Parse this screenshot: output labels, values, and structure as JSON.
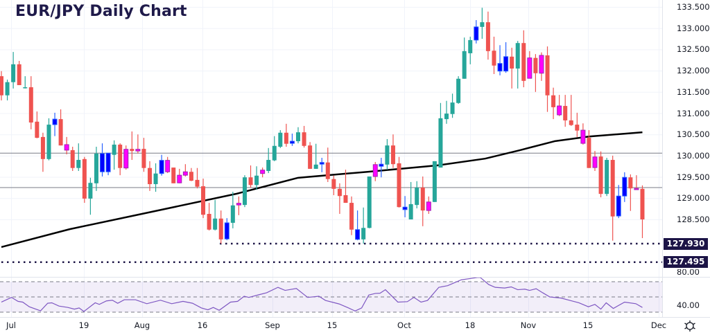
{
  "title": "EUR/JPY Daily Chart",
  "colors": {
    "up": "#26a69a",
    "down": "#ef5350",
    "blue": "#0000ff",
    "magenta": "#ff00ff",
    "ma": "#000000",
    "level": "#787b86",
    "badge": "#1c1446",
    "rsi": "#7e57c2"
  },
  "chart_data": {
    "type": "candlestick",
    "title": "EUR/JPY Daily Chart",
    "ylim": [
      127.35,
      133.65
    ],
    "price_ticks": [
      "133.500",
      "133.000",
      "132.500",
      "132.000",
      "131.500",
      "131.000",
      "130.500",
      "130.000",
      "129.500",
      "129.000",
      "128.500"
    ],
    "price_tick_values": [
      133.5,
      133.0,
      132.5,
      132.0,
      131.5,
      131.0,
      130.5,
      130.0,
      129.5,
      129.0,
      128.5
    ],
    "x_ticks": [
      "Jul",
      "19",
      "Aug",
      "16",
      "Sep",
      "15",
      "Oct",
      "18",
      "Nov",
      "15",
      "Dec"
    ],
    "candle_colors_legend": {
      "g": "bullish",
      "r": "bearish",
      "b": "bullish highlighted (blue)",
      "m": "bearish highlighted (magenta)"
    },
    "candles": [
      [
        131.87,
        131.99,
        131.3,
        131.42,
        "r"
      ],
      [
        131.42,
        131.79,
        131.3,
        131.73,
        "g"
      ],
      [
        131.73,
        132.44,
        131.58,
        132.15,
        "g"
      ],
      [
        132.15,
        132.23,
        131.66,
        131.66,
        "r"
      ],
      [
        131.6,
        131.87,
        131.58,
        131.61,
        "g"
      ],
      [
        131.61,
        131.87,
        130.62,
        130.78,
        "r"
      ],
      [
        130.8,
        131.04,
        130.41,
        130.42,
        "r"
      ],
      [
        130.44,
        130.54,
        129.62,
        129.92,
        "r"
      ],
      [
        129.92,
        130.88,
        129.89,
        130.73,
        "g"
      ],
      [
        130.73,
        131.01,
        130.46,
        130.86,
        "b"
      ],
      [
        130.86,
        131.09,
        130.24,
        130.24,
        "r"
      ],
      [
        130.26,
        130.44,
        130.03,
        130.13,
        "m"
      ],
      [
        130.13,
        130.21,
        129.64,
        129.71,
        "r"
      ],
      [
        129.71,
        130.29,
        129.64,
        129.9,
        "g"
      ],
      [
        129.92,
        129.97,
        128.89,
        128.99,
        "r"
      ],
      [
        128.99,
        129.48,
        128.61,
        129.36,
        "g"
      ],
      [
        129.35,
        130.21,
        129.17,
        130.05,
        "g"
      ],
      [
        129.62,
        130.29,
        129.51,
        130.05,
        "b"
      ],
      [
        129.62,
        130.06,
        129.54,
        130.06,
        "b"
      ],
      [
        130.02,
        130.36,
        129.67,
        130.26,
        "g"
      ],
      [
        130.26,
        130.29,
        129.54,
        129.71,
        "r"
      ],
      [
        130.15,
        130.24,
        129.67,
        129.71,
        "m"
      ],
      [
        130.16,
        130.57,
        129.9,
        130.11,
        "r"
      ],
      [
        130.15,
        130.5,
        130.05,
        130.11,
        "m"
      ],
      [
        130.16,
        130.42,
        129.62,
        129.71,
        "r"
      ],
      [
        129.71,
        129.87,
        129.17,
        129.33,
        "r"
      ],
      [
        129.33,
        129.82,
        129.15,
        129.58,
        "g"
      ],
      [
        129.58,
        130.02,
        129.53,
        129.89,
        "b"
      ],
      [
        129.89,
        129.97,
        129.59,
        129.62,
        "m"
      ],
      [
        129.72,
        129.72,
        129.35,
        129.35,
        "r"
      ],
      [
        129.54,
        129.69,
        129.35,
        129.36,
        "m"
      ],
      [
        129.62,
        129.8,
        129.51,
        129.54,
        "m"
      ],
      [
        129.62,
        129.71,
        129.4,
        129.41,
        "r"
      ],
      [
        129.43,
        129.71,
        129.23,
        129.27,
        "r"
      ],
      [
        129.28,
        129.46,
        128.53,
        128.61,
        "r"
      ],
      [
        128.63,
        128.89,
        128.24,
        128.26,
        "r"
      ],
      [
        128.26,
        128.96,
        128.24,
        128.52,
        "g"
      ],
      [
        128.52,
        128.71,
        127.93,
        128.03,
        "r"
      ],
      [
        128.04,
        128.53,
        128.01,
        128.42,
        "b"
      ],
      [
        128.42,
        129.15,
        128.29,
        128.83,
        "g"
      ],
      [
        128.88,
        129.04,
        128.6,
        128.84,
        "m"
      ],
      [
        128.84,
        129.54,
        128.79,
        129.49,
        "g"
      ],
      [
        129.49,
        129.77,
        129.25,
        129.31,
        "r"
      ],
      [
        129.31,
        129.75,
        129.2,
        129.53,
        "g"
      ],
      [
        129.66,
        129.72,
        129.49,
        129.58,
        "m"
      ],
      [
        129.64,
        130.18,
        129.59,
        129.9,
        "g"
      ],
      [
        129.89,
        130.46,
        129.87,
        130.23,
        "g"
      ],
      [
        130.21,
        130.6,
        130.18,
        130.54,
        "g"
      ],
      [
        130.54,
        130.75,
        130.21,
        130.28,
        "r"
      ],
      [
        130.29,
        130.52,
        130.23,
        130.34,
        "b"
      ],
      [
        130.34,
        130.67,
        130.29,
        130.55,
        "g"
      ],
      [
        130.55,
        130.7,
        130.19,
        130.23,
        "r"
      ],
      [
        130.24,
        130.32,
        129.69,
        129.69,
        "r"
      ],
      [
        129.69,
        130.28,
        129.69,
        129.79,
        "g"
      ],
      [
        129.8,
        129.95,
        129.61,
        129.84,
        "b"
      ],
      [
        129.84,
        130.19,
        129.38,
        129.45,
        "r"
      ],
      [
        129.45,
        129.53,
        129.07,
        129.22,
        "r"
      ],
      [
        129.22,
        129.35,
        128.63,
        129.05,
        "r"
      ],
      [
        129.07,
        129.67,
        128.89,
        128.89,
        "r"
      ],
      [
        128.89,
        129.04,
        128.13,
        128.26,
        "r"
      ],
      [
        128.03,
        128.71,
        128.01,
        128.26,
        "b"
      ],
      [
        128.03,
        128.78,
        127.93,
        128.3,
        "g"
      ],
      [
        128.3,
        129.51,
        128.29,
        129.51,
        "g"
      ],
      [
        129.79,
        129.85,
        129.4,
        129.51,
        "m"
      ],
      [
        129.75,
        129.95,
        129.49,
        129.8,
        "b"
      ],
      [
        129.79,
        130.39,
        129.67,
        130.24,
        "g"
      ],
      [
        130.24,
        130.5,
        129.71,
        129.8,
        "r"
      ],
      [
        129.82,
        129.97,
        128.78,
        128.79,
        "r"
      ],
      [
        128.73,
        129.05,
        128.55,
        128.79,
        "b"
      ],
      [
        128.5,
        129.38,
        128.5,
        128.86,
        "g"
      ],
      [
        128.84,
        129.4,
        128.76,
        129.25,
        "g"
      ],
      [
        129.25,
        129.51,
        128.34,
        128.71,
        "r"
      ],
      [
        128.91,
        129.04,
        128.63,
        128.71,
        "m"
      ],
      [
        128.91,
        129.87,
        128.91,
        129.87,
        "g"
      ],
      [
        129.72,
        131.24,
        129.72,
        130.88,
        "g"
      ],
      [
        130.86,
        131.29,
        130.75,
        130.99,
        "g"
      ],
      [
        130.98,
        131.46,
        130.89,
        131.25,
        "g"
      ],
      [
        131.24,
        131.87,
        131.22,
        131.81,
        "g"
      ],
      [
        131.81,
        132.78,
        131.81,
        132.46,
        "g"
      ],
      [
        132.41,
        132.8,
        132.15,
        132.72,
        "g"
      ],
      [
        132.72,
        133.19,
        132.64,
        133.03,
        "b"
      ],
      [
        133.03,
        133.48,
        132.75,
        133.14,
        "g"
      ],
      [
        133.14,
        133.39,
        132.26,
        132.46,
        "r"
      ],
      [
        132.47,
        132.8,
        131.92,
        132.12,
        "r"
      ],
      [
        131.99,
        132.6,
        131.89,
        132.17,
        "b"
      ],
      [
        131.99,
        132.67,
        131.95,
        132.33,
        "b"
      ],
      [
        132.33,
        132.54,
        131.58,
        132.05,
        "r"
      ],
      [
        132.05,
        132.7,
        131.58,
        132.65,
        "g"
      ],
      [
        132.65,
        132.95,
        131.61,
        131.76,
        "r"
      ],
      [
        132.3,
        132.46,
        131.82,
        131.82,
        "m"
      ],
      [
        132.3,
        132.39,
        131.5,
        131.94,
        "r"
      ],
      [
        132.36,
        132.43,
        131.76,
        131.94,
        "m"
      ],
      [
        132.36,
        132.57,
        131.03,
        131.42,
        "r"
      ],
      [
        131.42,
        131.6,
        130.86,
        131.14,
        "r"
      ],
      [
        131.17,
        131.43,
        130.93,
        130.96,
        "m"
      ],
      [
        131.17,
        131.43,
        130.68,
        130.83,
        "r"
      ],
      [
        130.83,
        131.43,
        130.7,
        130.72,
        "r"
      ],
      [
        130.73,
        131.01,
        130.44,
        130.59,
        "r"
      ],
      [
        130.6,
        130.76,
        130.26,
        130.29,
        "m"
      ],
      [
        130.42,
        130.6,
        129.71,
        129.71,
        "r"
      ],
      [
        129.97,
        130.11,
        129.64,
        129.72,
        "m"
      ],
      [
        129.98,
        130.1,
        129.02,
        129.1,
        "r"
      ],
      [
        129.1,
        129.95,
        129.05,
        129.9,
        "g"
      ],
      [
        129.9,
        130.0,
        128.0,
        128.57,
        "r"
      ],
      [
        128.58,
        129.31,
        128.53,
        129.05,
        "b"
      ],
      [
        129.05,
        129.61,
        128.91,
        129.49,
        "b"
      ],
      [
        129.49,
        129.56,
        128.7,
        129.23,
        "r"
      ],
      [
        129.23,
        129.54,
        129.2,
        129.2,
        "m"
      ],
      [
        129.22,
        129.3,
        128.06,
        128.5,
        "r"
      ]
    ],
    "moving_average": [
      [
        0,
        127.85
      ],
      [
        11.5,
        128.27
      ],
      [
        23,
        128.61
      ],
      [
        39.5,
        129.1
      ],
      [
        50,
        129.48
      ],
      [
        61.7,
        129.62
      ],
      [
        73.4,
        129.77
      ],
      [
        81.5,
        129.93
      ],
      [
        87.4,
        130.13
      ],
      [
        93.2,
        130.34
      ],
      [
        99,
        130.45
      ],
      [
        108,
        130.55
      ]
    ],
    "horizontal_levels": [
      130.06,
      129.25
    ],
    "dotted_levels": [
      {
        "value": 127.93,
        "label": "127.930",
        "from_index": 36.8
      },
      {
        "value": 127.495,
        "label": "127.495",
        "from_index": 0
      }
    ],
    "rsi": {
      "ticks": [
        "80.00",
        "40.00"
      ],
      "tick_values": [
        80,
        40
      ],
      "bands": [
        70,
        50,
        30
      ],
      "ylim": [
        27,
        82
      ],
      "points": [
        [
          0,
          43.2
        ],
        [
          1.7,
          49.4
        ],
        [
          2.8,
          44.2
        ],
        [
          3.6,
          43.2
        ],
        [
          4.7,
          37.1
        ],
        [
          6.6,
          31.8
        ],
        [
          7.8,
          41.7
        ],
        [
          8.5,
          42.3
        ],
        [
          9.7,
          38
        ],
        [
          11.2,
          36.2
        ],
        [
          12.3,
          34
        ],
        [
          13.1,
          35.5
        ],
        [
          13.9,
          30.9
        ],
        [
          15.8,
          42.3
        ],
        [
          16.5,
          40.2
        ],
        [
          17.7,
          44.8
        ],
        [
          18.7,
          45.7
        ],
        [
          19.6,
          41.7
        ],
        [
          20.7,
          46.3
        ],
        [
          22.6,
          46.3
        ],
        [
          24.5,
          41.1
        ],
        [
          26.8,
          45.7
        ],
        [
          28.7,
          41.1
        ],
        [
          30.6,
          44.2
        ],
        [
          32.2,
          41.7
        ],
        [
          33.7,
          35.5
        ],
        [
          34.8,
          33.1
        ],
        [
          35.7,
          36.2
        ],
        [
          36.7,
          32.5
        ],
        [
          38.6,
          43.2
        ],
        [
          39.8,
          44.2
        ],
        [
          40.9,
          50.9
        ],
        [
          41.7,
          49.4
        ],
        [
          43.2,
          52.5
        ],
        [
          44.7,
          55.5
        ],
        [
          46.6,
          62.6
        ],
        [
          47.8,
          58.6
        ],
        [
          49.7,
          61.1
        ],
        [
          51.6,
          49.4
        ],
        [
          53.5,
          50.9
        ],
        [
          54.6,
          45.4
        ],
        [
          56.9,
          40.8
        ],
        [
          58.5,
          35.5
        ],
        [
          59.6,
          31.5
        ],
        [
          60.7,
          35.5
        ],
        [
          61.9,
          52.5
        ],
        [
          63,
          54.6
        ],
        [
          63.8,
          54.9
        ],
        [
          64.7,
          59.5
        ],
        [
          66.8,
          43.2
        ],
        [
          68.4,
          43.8
        ],
        [
          69.5,
          49.4
        ],
        [
          70.7,
          43.2
        ],
        [
          71.8,
          45.4
        ],
        [
          73.7,
          62.6
        ],
        [
          75.2,
          64.8
        ],
        [
          77.5,
          72.5
        ],
        [
          80.2,
          75.5
        ],
        [
          80.7,
          75.5
        ],
        [
          82.1,
          66.3
        ],
        [
          83.2,
          62.6
        ],
        [
          84.8,
          61.7
        ],
        [
          85.9,
          63.2
        ],
        [
          87,
          59.5
        ],
        [
          88.2,
          60.2
        ],
        [
          89,
          58.6
        ],
        [
          90.1,
          60.8
        ],
        [
          91.2,
          55.5
        ],
        [
          92.4,
          50
        ],
        [
          94.3,
          48.5
        ],
        [
          95.8,
          45.4
        ],
        [
          97.3,
          42.3
        ],
        [
          98.9,
          37.1
        ],
        [
          100,
          40.2
        ],
        [
          101,
          34
        ],
        [
          101.9,
          42.3
        ],
        [
          103.1,
          34.9
        ],
        [
          105,
          43.2
        ],
        [
          106.9,
          41.1
        ],
        [
          108,
          36.2
        ]
      ]
    }
  }
}
